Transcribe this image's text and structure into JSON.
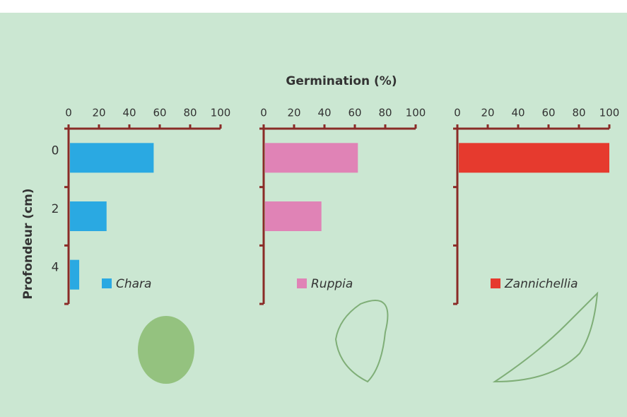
{
  "chart_data": {
    "type": "bar",
    "orientation": "horizontal",
    "xlabel": "Germination (%)",
    "ylabel": "Profondeur (cm)",
    "categories": [
      "0",
      "2",
      "4"
    ],
    "xlim": [
      0,
      100
    ],
    "xticks": [
      0,
      20,
      40,
      60,
      80,
      100
    ],
    "series": [
      {
        "name": "Chara",
        "color": "#2aa9e2",
        "values": [
          56,
          25,
          7
        ]
      },
      {
        "name": "Ruppia",
        "color": "#e083b6",
        "values": [
          62,
          38,
          0
        ]
      },
      {
        "name": "Zannichellia",
        "color": "#e63a2e",
        "values": [
          100,
          0,
          0
        ]
      }
    ]
  }
}
